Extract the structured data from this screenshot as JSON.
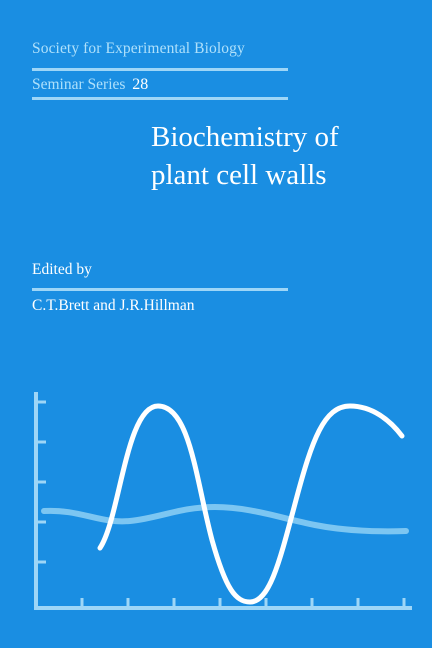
{
  "series": {
    "society": "Society for Experimental Biology",
    "label": "Seminar Series",
    "number": "28"
  },
  "title": {
    "line1": "Biochemistry of",
    "line2": "plant cell walls"
  },
  "edited_by": "Edited by",
  "editors": "C.T.Brett and J.R.Hillman",
  "colors": {
    "background": "#1a8ee2",
    "light_blue": "#9ed6f7",
    "white": "#ffffff"
  }
}
